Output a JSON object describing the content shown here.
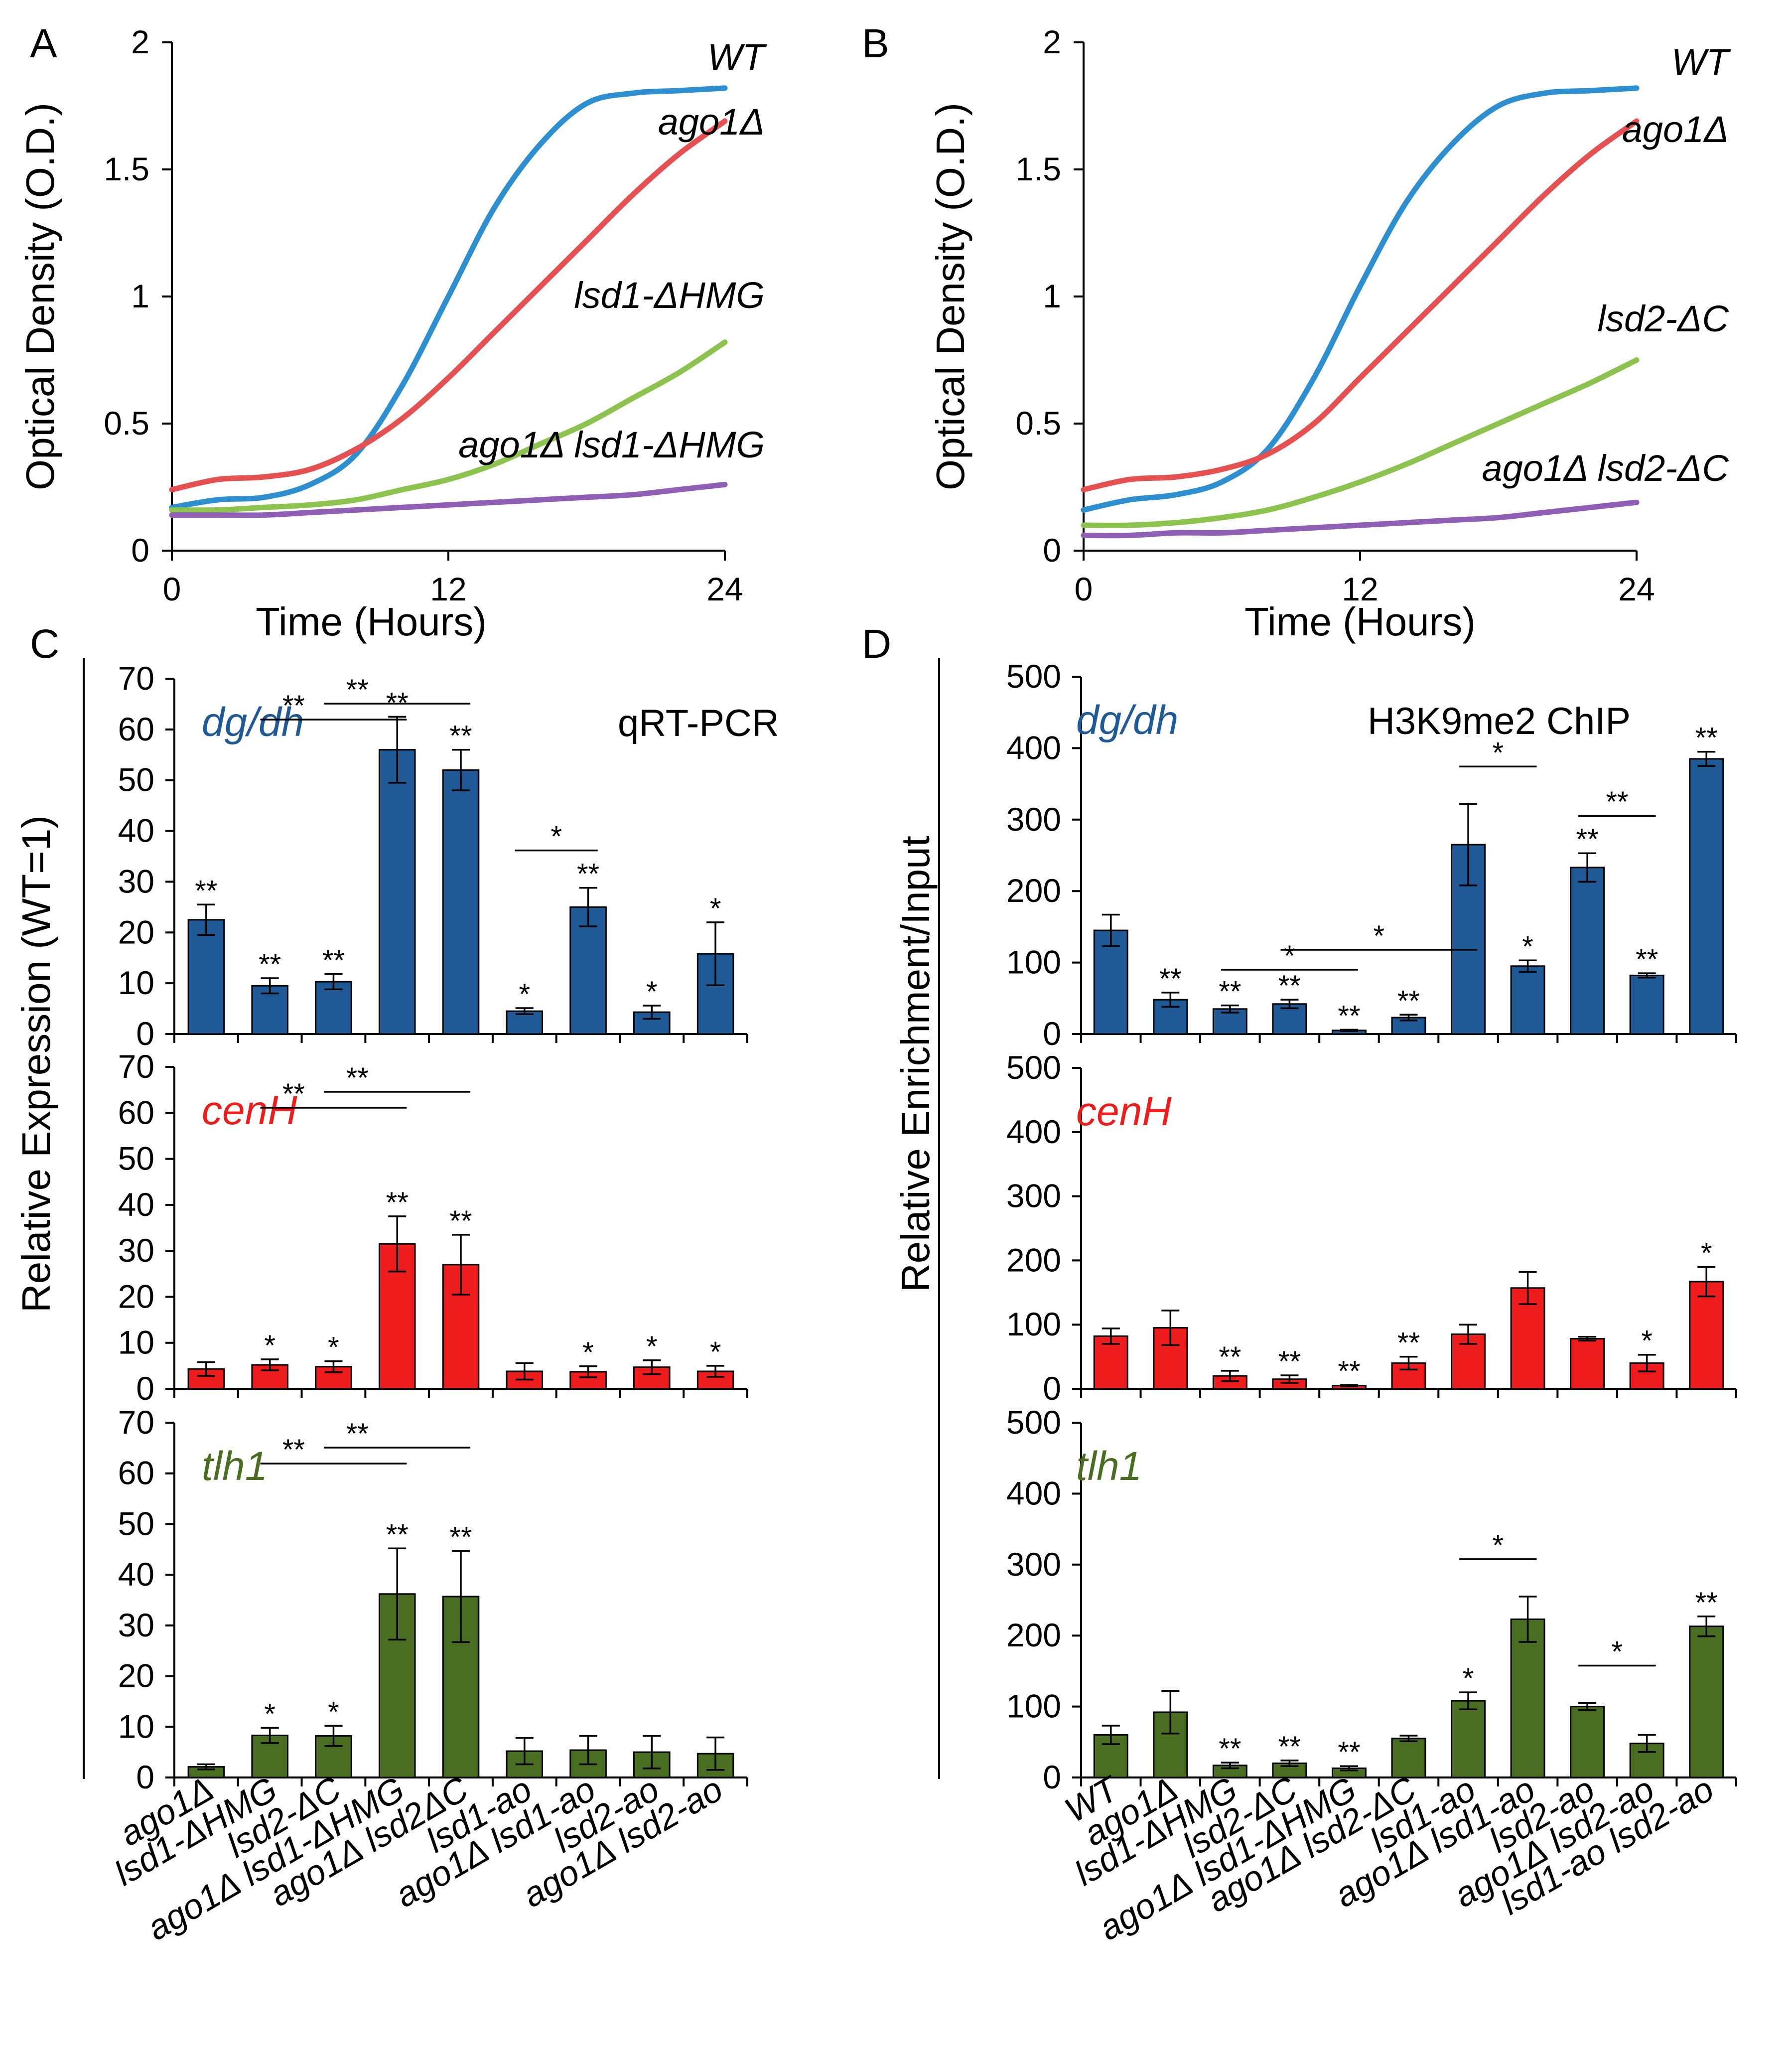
{
  "figure": {
    "panels": {
      "A": "A",
      "B": "B",
      "C": "C",
      "D": "D"
    },
    "colors": {
      "blue": "#1f5a96",
      "red": "#ee1c1c",
      "green": "#4a6e21",
      "line_wt": "#2d8fd0",
      "line_ago1": "#e55050",
      "line_mut": "#8cc24e",
      "line_double": "#8e5fb5"
    }
  },
  "chart_data": [
    {
      "id": "A",
      "type": "line",
      "title": "",
      "xlabel": "Time (Hours)",
      "ylabel": "Optical Density (O.D.)",
      "xlim": [
        0,
        24
      ],
      "ylim": [
        0,
        2
      ],
      "xticks": [
        "0",
        "12",
        "24"
      ],
      "yticks": [
        "0",
        "0.5",
        "1",
        "1.5",
        "2"
      ],
      "x": [
        0,
        2,
        4,
        6,
        8,
        10,
        12,
        14,
        16,
        18,
        20,
        22,
        24
      ],
      "series": [
        {
          "name": "WT",
          "color": "#2d8fd0",
          "values": [
            0.17,
            0.2,
            0.21,
            0.26,
            0.38,
            0.65,
            1.0,
            1.35,
            1.6,
            1.76,
            1.8,
            1.81,
            1.82
          ]
        },
        {
          "name": "ago1Δ",
          "color": "#e55050",
          "values": [
            0.24,
            0.28,
            0.29,
            0.32,
            0.4,
            0.52,
            0.68,
            0.86,
            1.04,
            1.22,
            1.4,
            1.56,
            1.69
          ]
        },
        {
          "name": "lsd1-ΔHMG",
          "color": "#8cc24e",
          "values": [
            0.16,
            0.16,
            0.17,
            0.18,
            0.2,
            0.24,
            0.28,
            0.34,
            0.42,
            0.5,
            0.6,
            0.7,
            0.82
          ]
        },
        {
          "name": "ago1Δ lsd1-ΔHMG",
          "color": "#8e5fb5",
          "values": [
            0.14,
            0.14,
            0.14,
            0.15,
            0.16,
            0.17,
            0.18,
            0.19,
            0.2,
            0.21,
            0.22,
            0.24,
            0.26
          ]
        }
      ]
    },
    {
      "id": "B",
      "type": "line",
      "title": "",
      "xlabel": "Time (Hours)",
      "ylabel": "Optical Density (O.D.)",
      "xlim": [
        0,
        24
      ],
      "ylim": [
        0,
        2
      ],
      "xticks": [
        "0",
        "12",
        "24"
      ],
      "yticks": [
        "0",
        "0.5",
        "1",
        "1.5",
        "2"
      ],
      "x": [
        0,
        2,
        4,
        6,
        8,
        10,
        12,
        14,
        16,
        18,
        20,
        22,
        24
      ],
      "series": [
        {
          "name": "WT",
          "color": "#2d8fd0",
          "values": [
            0.16,
            0.2,
            0.22,
            0.27,
            0.4,
            0.68,
            1.04,
            1.37,
            1.6,
            1.75,
            1.8,
            1.81,
            1.82
          ]
        },
        {
          "name": "ago1Δ",
          "color": "#e55050",
          "values": [
            0.24,
            0.28,
            0.29,
            0.32,
            0.38,
            0.5,
            0.68,
            0.86,
            1.04,
            1.22,
            1.4,
            1.56,
            1.69
          ]
        },
        {
          "name": "lsd2-ΔC",
          "color": "#8cc24e",
          "values": [
            0.1,
            0.1,
            0.11,
            0.13,
            0.16,
            0.21,
            0.27,
            0.34,
            0.42,
            0.5,
            0.58,
            0.66,
            0.75
          ]
        },
        {
          "name": "ago1Δ lsd2-ΔC",
          "color": "#8e5fb5",
          "values": [
            0.06,
            0.06,
            0.07,
            0.07,
            0.08,
            0.09,
            0.1,
            0.11,
            0.12,
            0.13,
            0.15,
            0.17,
            0.19
          ]
        }
      ]
    },
    {
      "id": "C",
      "type": "bar",
      "ylabel": "Relative Expression (WT=1)",
      "method": "qRT-PCR",
      "ylim": [
        0,
        70
      ],
      "yticks": [
        "0",
        "10",
        "20",
        "30",
        "40",
        "50",
        "60",
        "70"
      ],
      "categories": [
        "ago1Δ",
        "lsd1-ΔHMG",
        "lsd2-ΔC",
        "ago1Δ lsd1-ΔHMG",
        "ago1Δ lsd2ΔC",
        "lsd1-ao",
        "ago1Δ lsd1-ao",
        "lsd2-ao",
        "ago1Δ lsd2-ao"
      ],
      "series": [
        {
          "name": "dg/dh",
          "color": "#1f5a96",
          "values": [
            22.5,
            9.5,
            10.3,
            56,
            52,
            4.5,
            25,
            4.3,
            15.8
          ],
          "errors": [
            3,
            1.5,
            1.5,
            6.5,
            4,
            0.6,
            3.8,
            1.3,
            6.2
          ],
          "stars": [
            "**",
            "**",
            "**",
            "**",
            "**",
            "*",
            "**",
            "*",
            "*"
          ],
          "brackets": [
            {
              "from": 1,
              "to": 3,
              "label": "**"
            },
            {
              "from": 2,
              "to": 4,
              "label": "**"
            },
            {
              "from": 5,
              "to": 6,
              "label": "*"
            }
          ]
        },
        {
          "name": "cenH",
          "color": "#ee1c1c",
          "values": [
            4.3,
            5.2,
            4.8,
            31.5,
            27,
            3.8,
            3.7,
            4.7,
            3.8
          ],
          "errors": [
            1.5,
            1.2,
            1.2,
            6,
            6.5,
            1.8,
            1.2,
            1.5,
            1.2
          ],
          "stars": [
            "",
            "*",
            "*",
            "**",
            "**",
            "",
            "*",
            "*",
            "*"
          ],
          "brackets": [
            {
              "from": 1,
              "to": 3,
              "label": "**"
            },
            {
              "from": 2,
              "to": 4,
              "label": "**"
            }
          ]
        },
        {
          "name": "tlh1",
          "color": "#4a6e21",
          "values": [
            2.1,
            8.3,
            8.2,
            36.2,
            35.7,
            5.2,
            5.4,
            5,
            4.7
          ],
          "errors": [
            0.5,
            1.5,
            2,
            9,
            9,
            2.6,
            2.8,
            3.2,
            3.2
          ],
          "stars": [
            "",
            "*",
            "*",
            "**",
            "**",
            "",
            "",
            "",
            ""
          ],
          "brackets": [
            {
              "from": 1,
              "to": 3,
              "label": "**"
            },
            {
              "from": 2,
              "to": 4,
              "label": "**"
            }
          ]
        }
      ]
    },
    {
      "id": "D",
      "type": "bar",
      "ylabel": "Relative Enrichment/Input",
      "method": "H3K9me2 ChIP",
      "ylim": [
        0,
        500
      ],
      "yticks": [
        "0",
        "100",
        "200",
        "300",
        "400",
        "500"
      ],
      "categories": [
        "WT",
        "ago1Δ",
        "lsd1-ΔHMG",
        "lsd2-ΔC",
        "ago1Δ lsd1-ΔHMG",
        "ago1Δ lsd2-ΔC",
        "lsd1-ao",
        "ago1Δ lsd1-ao",
        "lsd2-ao",
        "ago1Δ lsd2-ao",
        "lsd1-ao lsd2-ao"
      ],
      "series": [
        {
          "name": "dg/dh",
          "color": "#1f5a96",
          "values": [
            145,
            48,
            35,
            42,
            5,
            23,
            265,
            95,
            233,
            82,
            385
          ],
          "errors": [
            22,
            10,
            5,
            6,
            1,
            4,
            57,
            8,
            20,
            3,
            10
          ],
          "stars": [
            "",
            "**",
            "**",
            "**",
            "**",
            "**",
            "",
            "*",
            "**",
            "**",
            "**"
          ],
          "brackets": [
            {
              "from": 2,
              "to": 4,
              "label": "*"
            },
            {
              "from": 3,
              "to": 6,
              "label": "*"
            },
            {
              "from": 6,
              "to": 7,
              "label": "*"
            },
            {
              "from": 8,
              "to": 9,
              "label": "**"
            }
          ]
        },
        {
          "name": "cenH",
          "color": "#ee1c1c",
          "values": [
            82,
            95,
            20,
            15,
            5,
            40,
            85,
            157,
            78,
            40,
            167
          ],
          "errors": [
            12,
            27,
            8,
            6,
            1,
            10,
            15,
            25,
            3,
            13,
            23
          ],
          "stars": [
            "",
            "",
            "**",
            "**",
            "**",
            "**",
            "",
            "",
            "",
            "*",
            "*"
          ],
          "brackets": []
        },
        {
          "name": "tlh1",
          "color": "#4a6e21",
          "values": [
            60,
            92,
            17,
            20,
            13,
            55,
            108,
            223,
            100,
            48,
            213
          ],
          "errors": [
            13,
            30,
            4,
            4,
            3,
            4,
            12,
            32,
            5,
            12,
            14
          ],
          "stars": [
            "",
            "",
            "**",
            "**",
            "**",
            "",
            "*",
            "",
            "",
            "",
            "**"
          ],
          "brackets": [
            {
              "from": 6,
              "to": 7,
              "label": "*"
            },
            {
              "from": 8,
              "to": 9,
              "label": "*"
            }
          ]
        }
      ]
    }
  ]
}
